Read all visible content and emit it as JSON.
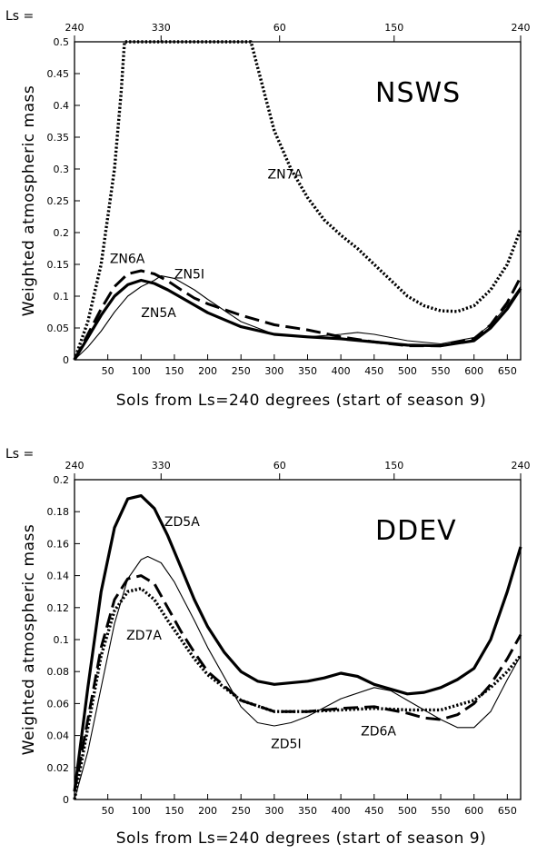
{
  "chart_data": [
    {
      "type": "line",
      "panel": "top",
      "title": "NSWS",
      "xlabel": "Sols from Ls=240 degrees (start of season 9)",
      "ylabel": "Weighted atmospheric mass",
      "top_axis_prefix": "Ls =",
      "top_axis_ticks": [
        {
          "sol": 0,
          "label": "240"
        },
        {
          "sol": 130,
          "label": "330"
        },
        {
          "sol": 308,
          "label": "60"
        },
        {
          "sol": 480,
          "label": "150"
        },
        {
          "sol": 670,
          "label": "240"
        }
      ],
      "xlim": [
        0,
        670
      ],
      "ylim": [
        0,
        0.5
      ],
      "xticks": [
        50,
        100,
        150,
        200,
        250,
        300,
        350,
        400,
        450,
        500,
        550,
        600,
        650
      ],
      "yticks": [
        0,
        0.05,
        0.1,
        0.15,
        0.2,
        0.25,
        0.3,
        0.35,
        0.4,
        0.45,
        0.5
      ],
      "ytick_labels": [
        "0",
        "0.05",
        "0.1",
        "0.15",
        "0.2",
        "0.25",
        "0.3",
        "0.35",
        "0.4",
        "0.45",
        "0.5"
      ],
      "series": [
        {
          "name": "ZN5A",
          "style": "thick",
          "label_at": [
            100,
            0.067
          ],
          "x": [
            0,
            20,
            40,
            60,
            80,
            100,
            120,
            140,
            160,
            180,
            200,
            250,
            300,
            350,
            400,
            450,
            500,
            550,
            600,
            625,
            650,
            670
          ],
          "y": [
            0,
            0.035,
            0.07,
            0.1,
            0.118,
            0.125,
            0.12,
            0.11,
            0.098,
            0.086,
            0.074,
            0.052,
            0.04,
            0.036,
            0.033,
            0.028,
            0.023,
            0.022,
            0.03,
            0.05,
            0.08,
            0.112
          ]
        },
        {
          "name": "ZN5I",
          "style": "thin",
          "label_at": [
            150,
            0.128
          ],
          "x": [
            0,
            20,
            40,
            60,
            80,
            100,
            120,
            130,
            150,
            180,
            200,
            250,
            300,
            350,
            400,
            425,
            450,
            500,
            550,
            600,
            625,
            650,
            670
          ],
          "y": [
            0,
            0.02,
            0.045,
            0.075,
            0.1,
            0.115,
            0.125,
            0.132,
            0.128,
            0.11,
            0.095,
            0.06,
            0.04,
            0.036,
            0.04,
            0.043,
            0.04,
            0.03,
            0.025,
            0.035,
            0.055,
            0.085,
            0.115
          ]
        },
        {
          "name": "ZN6A",
          "style": "dashed",
          "label_at": [
            53,
            0.152
          ],
          "x": [
            0,
            20,
            40,
            60,
            80,
            100,
            120,
            140,
            160,
            180,
            200,
            250,
            300,
            350,
            400,
            450,
            500,
            550,
            600,
            625,
            650,
            670
          ],
          "y": [
            0,
            0.04,
            0.08,
            0.115,
            0.135,
            0.14,
            0.135,
            0.124,
            0.11,
            0.097,
            0.088,
            0.07,
            0.055,
            0.047,
            0.036,
            0.028,
            0.022,
            0.022,
            0.033,
            0.055,
            0.09,
            0.13
          ]
        },
        {
          "name": "ZN7A",
          "style": "dotted-thick",
          "label_at": [
            290,
            0.285
          ],
          "x": [
            0,
            20,
            40,
            60,
            70,
            75,
            265,
            275,
            300,
            325,
            350,
            375,
            400,
            425,
            450,
            475,
            500,
            525,
            550,
            575,
            600,
            625,
            650,
            670
          ],
          "y": [
            0,
            0.06,
            0.15,
            0.3,
            0.42,
            0.5,
            0.5,
            0.46,
            0.36,
            0.3,
            0.255,
            0.22,
            0.196,
            0.175,
            0.15,
            0.125,
            0.1,
            0.085,
            0.077,
            0.076,
            0.085,
            0.11,
            0.15,
            0.205
          ]
        }
      ]
    },
    {
      "type": "line",
      "panel": "bottom",
      "title": "DDEV",
      "xlabel": "Sols from Ls=240 degrees (start of season 9)",
      "ylabel": "Weighted atmospheric mass",
      "top_axis_prefix": "Ls =",
      "top_axis_ticks": [
        {
          "sol": 0,
          "label": "240"
        },
        {
          "sol": 130,
          "label": "330"
        },
        {
          "sol": 308,
          "label": "60"
        },
        {
          "sol": 480,
          "label": "150"
        },
        {
          "sol": 670,
          "label": "240"
        }
      ],
      "xlim": [
        0,
        670
      ],
      "ylim": [
        0,
        0.2
      ],
      "xticks": [
        50,
        100,
        150,
        200,
        250,
        300,
        350,
        400,
        450,
        500,
        550,
        600,
        650
      ],
      "yticks": [
        0,
        0.02,
        0.04,
        0.06,
        0.08,
        0.1,
        0.12,
        0.14,
        0.16,
        0.18,
        0.2
      ],
      "ytick_labels": [
        "0",
        "0.02",
        "0.04",
        "0.06",
        "0.08",
        "0.1",
        "0.12",
        "0.14",
        "0.16",
        "0.18",
        "0.2"
      ],
      "series": [
        {
          "name": "ZD5A",
          "style": "thick",
          "label_at": [
            135,
            0.171
          ],
          "x": [
            0,
            20,
            40,
            60,
            80,
            100,
            120,
            140,
            160,
            180,
            200,
            225,
            250,
            275,
            300,
            350,
            375,
            400,
            425,
            450,
            500,
            525,
            550,
            575,
            600,
            625,
            650,
            670
          ],
          "y": [
            0.005,
            0.07,
            0.13,
            0.17,
            0.188,
            0.19,
            0.182,
            0.165,
            0.145,
            0.125,
            0.108,
            0.092,
            0.08,
            0.074,
            0.072,
            0.074,
            0.076,
            0.079,
            0.077,
            0.072,
            0.066,
            0.067,
            0.07,
            0.075,
            0.082,
            0.1,
            0.13,
            0.158
          ]
        },
        {
          "name": "ZD5I",
          "style": "thin",
          "label_at": [
            295,
            0.032
          ],
          "x": [
            0,
            20,
            40,
            60,
            80,
            100,
            110,
            130,
            150,
            180,
            200,
            250,
            275,
            300,
            325,
            350,
            400,
            450,
            475,
            500,
            550,
            575,
            600,
            625,
            650,
            670
          ],
          "y": [
            0,
            0.03,
            0.07,
            0.11,
            0.138,
            0.15,
            0.152,
            0.148,
            0.136,
            0.112,
            0.095,
            0.058,
            0.048,
            0.046,
            0.048,
            0.052,
            0.063,
            0.07,
            0.068,
            0.062,
            0.05,
            0.045,
            0.045,
            0.055,
            0.075,
            0.09
          ]
        },
        {
          "name": "ZD6A",
          "style": "dashed",
          "label_at": [
            430,
            0.04
          ],
          "x": [
            0,
            20,
            40,
            60,
            80,
            100,
            120,
            140,
            160,
            180,
            200,
            250,
            300,
            350,
            400,
            450,
            500,
            525,
            550,
            575,
            600,
            625,
            650,
            670
          ],
          "y": [
            0.005,
            0.05,
            0.095,
            0.125,
            0.138,
            0.14,
            0.135,
            0.12,
            0.105,
            0.092,
            0.08,
            0.062,
            0.055,
            0.055,
            0.057,
            0.058,
            0.054,
            0.051,
            0.05,
            0.053,
            0.06,
            0.072,
            0.088,
            0.103
          ]
        },
        {
          "name": "ZD7A",
          "style": "dotted-thick",
          "label_at": [
            78,
            0.1
          ],
          "x": [
            0,
            20,
            40,
            60,
            80,
            100,
            120,
            140,
            160,
            180,
            200,
            250,
            300,
            350,
            400,
            450,
            500,
            550,
            600,
            625,
            650,
            670
          ],
          "y": [
            0,
            0.045,
            0.09,
            0.118,
            0.13,
            0.132,
            0.125,
            0.112,
            0.1,
            0.088,
            0.078,
            0.062,
            0.055,
            0.055,
            0.056,
            0.057,
            0.056,
            0.056,
            0.062,
            0.07,
            0.08,
            0.09
          ]
        }
      ]
    }
  ]
}
